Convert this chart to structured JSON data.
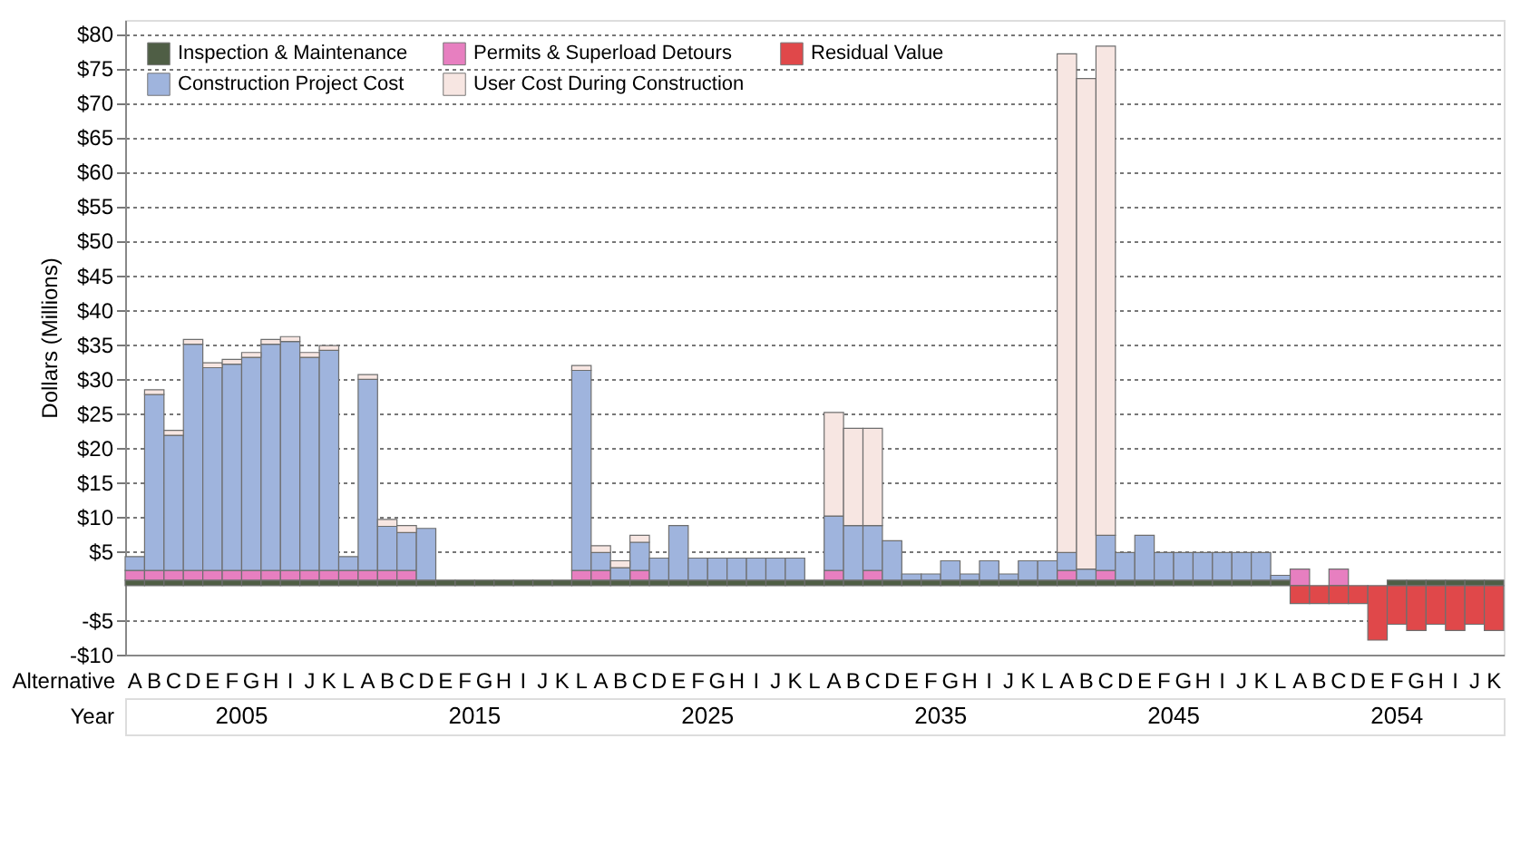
{
  "chart_data": {
    "type": "bar",
    "stacked": true,
    "ylabel": "Dollars (Millions)",
    "xlabel": "Alternative",
    "annotations": [
      "Year",
      "2005",
      "2015",
      "2025",
      "2035",
      "2045",
      "2054"
    ],
    "categories": [
      "A",
      "B",
      "C",
      "D",
      "E",
      "F",
      "G",
      "H",
      "I",
      "J",
      "K",
      "L",
      "A",
      "B",
      "C",
      "D",
      "E",
      "F",
      "G",
      "H",
      "I",
      "J",
      "K",
      "L",
      "A",
      "B",
      "C",
      "D",
      "E",
      "F",
      "G",
      "H",
      "I",
      "J",
      "K",
      "L",
      "A",
      "B",
      "C",
      "D",
      "E",
      "F",
      "G",
      "H",
      "I",
      "J",
      "K",
      "L",
      "A",
      "B",
      "C",
      "D",
      "E",
      "F",
      "G",
      "H",
      "I",
      "J",
      "K",
      "L",
      "A",
      "B",
      "C",
      "D",
      "E",
      "F",
      "G",
      "H",
      "I",
      "J",
      "K"
    ],
    "series": [
      {
        "name": "Inspection & Maintenance",
        "color": "#4f5e45",
        "values": [
          0.8,
          0.8,
          0.8,
          0.8,
          0.8,
          0.8,
          0.8,
          0.8,
          0.8,
          0.8,
          0.8,
          0.8,
          0.8,
          0.8,
          0.8,
          0.8,
          0.8,
          0.8,
          0.8,
          0.8,
          0.8,
          0.8,
          0.8,
          0.8,
          0.8,
          0.8,
          0.8,
          0.8,
          0.8,
          0.8,
          0.8,
          0.8,
          0.8,
          0.8,
          0.8,
          0.8,
          0.8,
          0.8,
          0.8,
          0.8,
          0.8,
          0.8,
          0.8,
          0.8,
          0.8,
          0.8,
          0.8,
          0.8,
          0.8,
          0.8,
          0.8,
          0.8,
          0.8,
          0.8,
          0.8,
          0.8,
          0.8,
          0.8,
          0.8,
          0.8,
          null,
          null,
          null,
          null,
          null,
          0.8,
          0.8,
          0.8,
          0.8,
          0.8,
          0.8
        ]
      },
      {
        "name": "Permits & Superload Detours",
        "color": "#e77fc0",
        "values": [
          1.4,
          1.4,
          1.4,
          1.4,
          1.4,
          1.4,
          1.4,
          1.4,
          1.4,
          1.4,
          1.4,
          1.4,
          1.4,
          1.4,
          1.4,
          null,
          null,
          null,
          null,
          null,
          null,
          null,
          null,
          1.4,
          1.4,
          null,
          1.4,
          null,
          null,
          null,
          null,
          null,
          null,
          null,
          null,
          null,
          1.4,
          null,
          1.4,
          null,
          null,
          null,
          null,
          null,
          null,
          null,
          null,
          null,
          1.4,
          null,
          1.4,
          null,
          null,
          null,
          null,
          null,
          null,
          null,
          null,
          null,
          2.4,
          null,
          2.4,
          null,
          null,
          null,
          null,
          null,
          null,
          null,
          null
        ]
      },
      {
        "name": "Residual Value",
        "color": "#e0484a",
        "values": [
          null,
          null,
          null,
          null,
          null,
          null,
          null,
          null,
          null,
          null,
          null,
          null,
          null,
          null,
          null,
          null,
          null,
          null,
          null,
          null,
          null,
          null,
          null,
          null,
          null,
          null,
          null,
          null,
          null,
          null,
          null,
          null,
          null,
          null,
          null,
          null,
          null,
          null,
          null,
          null,
          null,
          null,
          null,
          null,
          null,
          null,
          null,
          null,
          null,
          null,
          null,
          null,
          null,
          null,
          null,
          null,
          null,
          null,
          null,
          null,
          -2.6,
          -2.6,
          -2.6,
          -2.6,
          -7.9,
          -5.6,
          -6.5,
          -5.6,
          -6.5,
          -5.6,
          -6.5
        ]
      },
      {
        "name": "Construction Project Cost",
        "color": "#9fb4dd",
        "values": [
          2.0,
          25.5,
          19.6,
          32.8,
          29.4,
          29.9,
          30.9,
          32.8,
          33.2,
          30.9,
          31.9,
          2.0,
          27.7,
          6.4,
          5.5,
          7.5,
          null,
          null,
          null,
          null,
          null,
          null,
          null,
          29.0,
          2.6,
          1.8,
          4.1,
          3.2,
          7.9,
          3.2,
          3.2,
          3.2,
          3.2,
          3.2,
          3.2,
          null,
          7.9,
          7.9,
          6.5,
          5.7,
          0.9,
          0.9,
          2.8,
          0.9,
          2.8,
          0.9,
          2.8,
          2.8,
          2.6,
          1.6,
          5.1,
          4.0,
          6.5,
          4.0,
          4.0,
          4.0,
          4.0,
          4.0,
          4.0,
          0.7,
          null,
          null,
          null,
          null,
          null,
          null,
          null,
          null,
          null,
          null,
          null
        ]
      },
      {
        "name": "User Cost During Construction",
        "color": "#f7e6e2",
        "values": [
          null,
          0.7,
          0.7,
          0.7,
          0.7,
          0.7,
          0.7,
          0.7,
          0.7,
          0.7,
          0.7,
          null,
          0.7,
          1.0,
          1.0,
          null,
          null,
          null,
          null,
          null,
          null,
          null,
          null,
          0.7,
          1.0,
          1.0,
          1.0,
          null,
          null,
          null,
          null,
          null,
          null,
          null,
          null,
          null,
          15.0,
          14.1,
          14.1,
          null,
          null,
          null,
          null,
          null,
          null,
          null,
          null,
          null,
          72.3,
          71.1,
          70.9,
          null,
          null,
          null,
          null,
          null,
          null,
          null,
          null,
          null,
          null,
          null,
          null,
          null,
          null,
          null,
          null,
          null,
          null,
          null,
          null
        ]
      }
    ],
    "ylim": [
      -10,
      82
    ],
    "yticks": [
      {
        "value": -10,
        "label": "-$10"
      },
      {
        "value": -5,
        "label": "-$5"
      },
      {
        "value": 5,
        "label": "$5"
      },
      {
        "value": 10,
        "label": "$10"
      },
      {
        "value": 15,
        "label": "$15"
      },
      {
        "value": 20,
        "label": "$20"
      },
      {
        "value": 25,
        "label": "$25"
      },
      {
        "value": 30,
        "label": "$30"
      },
      {
        "value": 35,
        "label": "$35"
      },
      {
        "value": 40,
        "label": "$40"
      },
      {
        "value": 45,
        "label": "$45"
      },
      {
        "value": 50,
        "label": "$50"
      },
      {
        "value": 55,
        "label": "$55"
      },
      {
        "value": 60,
        "label": "$60"
      },
      {
        "value": 65,
        "label": "$65"
      },
      {
        "value": 70,
        "label": "$70"
      },
      {
        "value": 75,
        "label": "$75"
      },
      {
        "value": 80,
        "label": "$80"
      }
    ],
    "grid": "y",
    "legend": "top left"
  }
}
